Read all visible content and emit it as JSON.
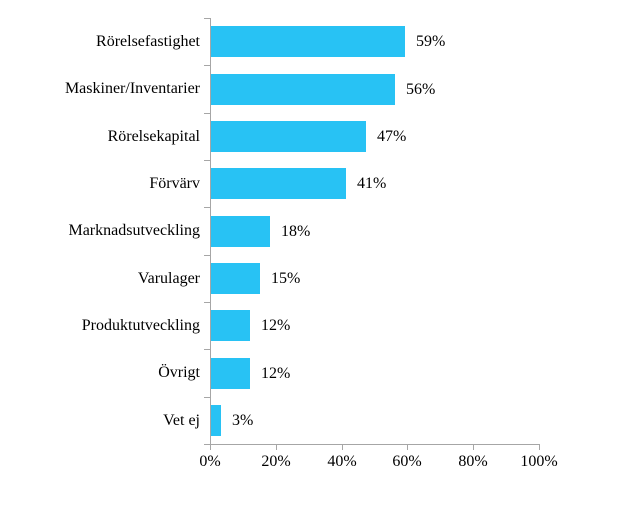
{
  "chart_data": {
    "type": "bar",
    "orientation": "horizontal",
    "title": "",
    "xlabel": "",
    "ylabel": "",
    "categories": [
      "Rörelsefastighet",
      "Maskiner/Inventarier",
      "Rörelsekapital",
      "Förvärv",
      "Marknadsutveckling",
      "Varulager",
      "Produktutveckling",
      "Övrigt",
      "Vet ej"
    ],
    "values": [
      59,
      56,
      47,
      41,
      18,
      15,
      12,
      12,
      3
    ],
    "value_labels": [
      "59%",
      "56%",
      "47%",
      "41%",
      "18%",
      "15%",
      "12%",
      "12%",
      "3%"
    ],
    "xlim": [
      0,
      100
    ],
    "x_ticks": [
      "0%",
      "20%",
      "40%",
      "60%",
      "80%",
      "100%"
    ],
    "x_tick_values": [
      0,
      20,
      40,
      60,
      80,
      100
    ],
    "grid": false,
    "legend": false,
    "colors": {
      "bar": "#28c2f4",
      "axis": "#a6a6a6",
      "text": "#000000",
      "background": "#ffffff"
    }
  }
}
